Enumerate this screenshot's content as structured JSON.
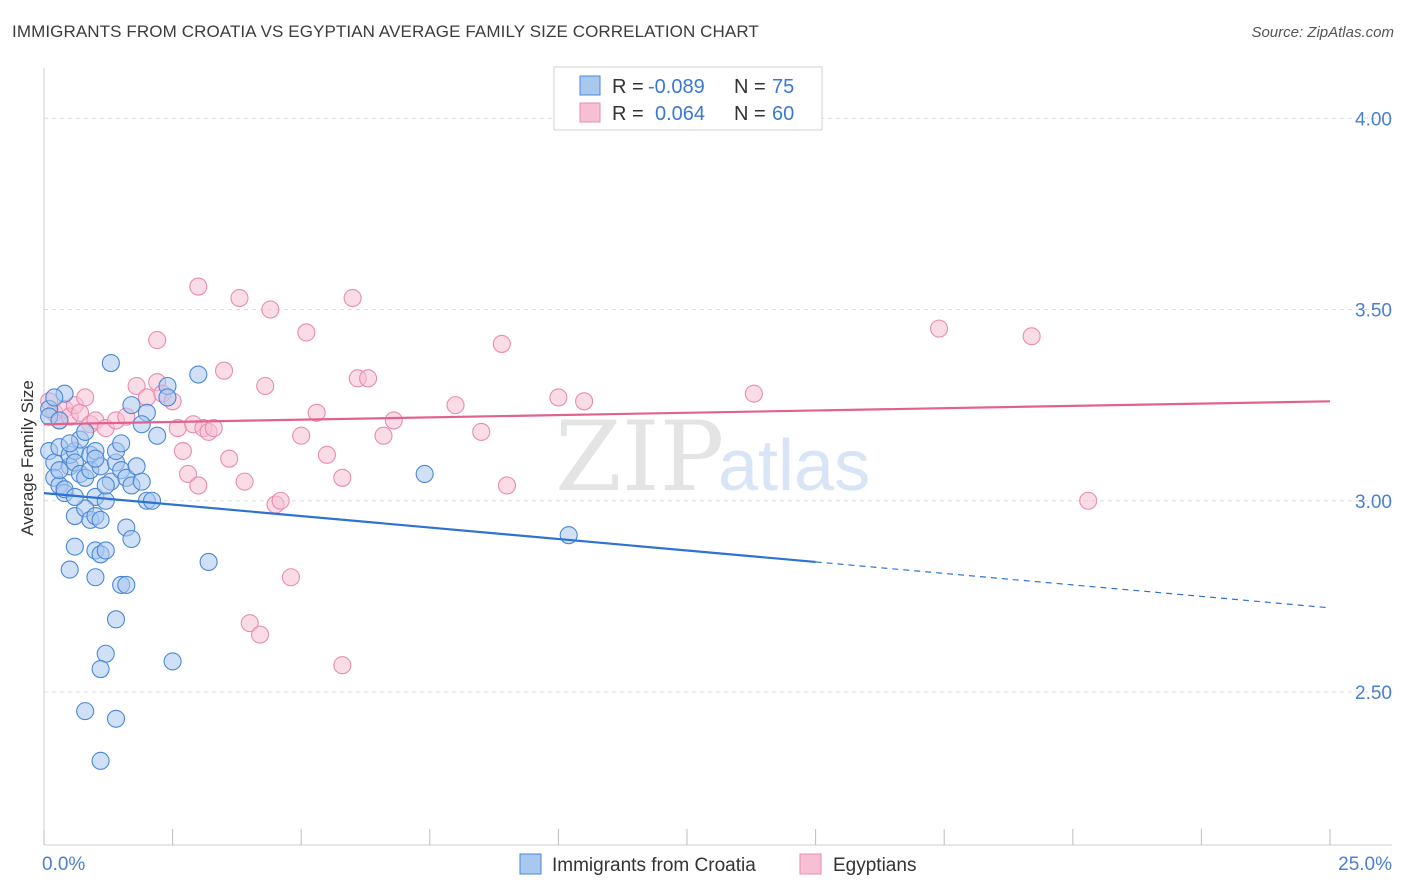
{
  "header": {
    "title": "IMMIGRANTS FROM CROATIA VS EGYPTIAN AVERAGE FAMILY SIZE CORRELATION CHART",
    "source": "Source: ZipAtlas.com"
  },
  "watermark": {
    "zip": "ZIP",
    "atlas": "atlas"
  },
  "colors": {
    "blue_fill": "#a9c8f0",
    "blue_stroke": "#4a87d6",
    "blue_line": "#2f72d2",
    "pink_fill": "#f6bfd3",
    "pink_stroke": "#e98bb0",
    "pink_line": "#e2628f",
    "grid": "#dcdcdc",
    "tick_label": "#4a7fd4"
  },
  "legend": {
    "rows": [
      {
        "r_label": "R = ",
        "r_value": "-0.089",
        "n_label": "N = ",
        "n_value": "75"
      },
      {
        "r_label": "R = ",
        "r_value": "0.064",
        "n_label": "N = ",
        "n_value": "60"
      }
    ]
  },
  "bottom_legend": [
    "Immigrants from Croatia",
    "Egyptians"
  ],
  "chart_data": {
    "type": "scatter",
    "title": "IMMIGRANTS FROM CROATIA VS EGYPTIAN AVERAGE FAMILY SIZE CORRELATION CHART",
    "xlabel": "",
    "ylabel": "Average Family Size",
    "xlim": [
      0,
      25
    ],
    "ylim": [
      2.1,
      4.1
    ],
    "x_tick_labels": [
      "0.0%",
      "25.0%"
    ],
    "y_ticks": [
      2.5,
      3.0,
      3.5,
      4.0
    ],
    "y_tick_labels": [
      "2.50",
      "3.00",
      "3.50",
      "4.00"
    ],
    "grid": true,
    "legend_position": "top-center",
    "series": [
      {
        "name": "Immigrants from Croatia",
        "color": "#a9c8f0",
        "trend": {
          "x": [
            0,
            15
          ],
          "y": [
            3.02,
            2.84
          ],
          "dashed_to": [
            25,
            2.72
          ]
        },
        "points": [
          [
            0.1,
            3.24
          ],
          [
            0.1,
            3.22
          ],
          [
            0.1,
            3.13
          ],
          [
            0.2,
            3.1
          ],
          [
            0.2,
            3.06
          ],
          [
            0.3,
            3.04
          ],
          [
            0.3,
            3.14
          ],
          [
            0.4,
            3.02
          ],
          [
            0.4,
            3.03
          ],
          [
            0.5,
            3.09
          ],
          [
            0.5,
            3.12
          ],
          [
            0.6,
            3.13
          ],
          [
            0.6,
            3.1
          ],
          [
            0.7,
            3.16
          ],
          [
            0.7,
            3.07
          ],
          [
            0.8,
            3.06
          ],
          [
            0.9,
            3.12
          ],
          [
            0.9,
            3.08
          ],
          [
            1.0,
            3.13
          ],
          [
            1.0,
            3.01
          ],
          [
            1.1,
            3.09
          ],
          [
            1.2,
            3.0
          ],
          [
            1.3,
            3.05
          ],
          [
            1.4,
            3.1
          ],
          [
            1.5,
            3.08
          ],
          [
            1.6,
            3.06
          ],
          [
            1.7,
            3.04
          ],
          [
            1.8,
            3.09
          ],
          [
            1.9,
            3.05
          ],
          [
            2.0,
            3.0
          ],
          [
            2.1,
            3.0
          ],
          [
            0.6,
            2.96
          ],
          [
            0.8,
            2.98
          ],
          [
            0.9,
            2.95
          ],
          [
            1.0,
            2.96
          ],
          [
            1.1,
            2.95
          ],
          [
            1.6,
            2.93
          ],
          [
            1.7,
            2.9
          ],
          [
            1.0,
            2.87
          ],
          [
            1.1,
            2.86
          ],
          [
            1.2,
            2.87
          ],
          [
            0.6,
            2.88
          ],
          [
            0.5,
            2.82
          ],
          [
            1.0,
            2.8
          ],
          [
            1.5,
            2.78
          ],
          [
            1.6,
            2.78
          ],
          [
            1.4,
            2.69
          ],
          [
            1.2,
            2.6
          ],
          [
            1.1,
            2.56
          ],
          [
            2.5,
            2.58
          ],
          [
            0.8,
            2.45
          ],
          [
            1.4,
            2.43
          ],
          [
            1.1,
            2.32
          ],
          [
            1.3,
            3.36
          ],
          [
            2.4,
            3.3
          ],
          [
            2.4,
            3.27
          ],
          [
            3.0,
            3.33
          ],
          [
            1.7,
            3.25
          ],
          [
            2.0,
            3.23
          ],
          [
            0.4,
            3.28
          ],
          [
            1.4,
            3.13
          ],
          [
            3.2,
            2.84
          ],
          [
            7.4,
            3.07
          ],
          [
            10.2,
            2.91
          ],
          [
            0.2,
            3.27
          ],
          [
            0.3,
            3.21
          ],
          [
            0.8,
            3.18
          ],
          [
            1.9,
            3.2
          ],
          [
            1.5,
            3.15
          ],
          [
            2.2,
            3.17
          ],
          [
            1.0,
            3.11
          ],
          [
            0.6,
            3.01
          ],
          [
            1.2,
            3.04
          ],
          [
            0.3,
            3.08
          ],
          [
            0.5,
            3.15
          ]
        ]
      },
      {
        "name": "Egyptians",
        "color": "#f6bfd3",
        "trend": {
          "x": [
            0,
            25
          ],
          "y": [
            3.2,
            3.26
          ]
        },
        "points": [
          [
            0.1,
            3.26
          ],
          [
            0.2,
            3.23
          ],
          [
            0.3,
            3.21
          ],
          [
            0.4,
            3.24
          ],
          [
            0.5,
            3.22
          ],
          [
            0.6,
            3.25
          ],
          [
            0.7,
            3.23
          ],
          [
            0.8,
            3.27
          ],
          [
            0.9,
            3.2
          ],
          [
            1.0,
            3.21
          ],
          [
            1.2,
            3.19
          ],
          [
            1.4,
            3.21
          ],
          [
            1.6,
            3.22
          ],
          [
            1.8,
            3.3
          ],
          [
            2.0,
            3.27
          ],
          [
            2.2,
            3.31
          ],
          [
            2.3,
            3.28
          ],
          [
            2.5,
            3.26
          ],
          [
            2.6,
            3.19
          ],
          [
            2.7,
            3.13
          ],
          [
            2.8,
            3.07
          ],
          [
            2.9,
            3.2
          ],
          [
            3.0,
            3.04
          ],
          [
            3.1,
            3.19
          ],
          [
            3.2,
            3.18
          ],
          [
            3.3,
            3.19
          ],
          [
            3.5,
            3.34
          ],
          [
            3.6,
            3.11
          ],
          [
            3.8,
            3.53
          ],
          [
            3.9,
            3.05
          ],
          [
            4.0,
            2.68
          ],
          [
            4.2,
            2.65
          ],
          [
            4.3,
            3.3
          ],
          [
            4.4,
            3.5
          ],
          [
            4.5,
            2.99
          ],
          [
            4.6,
            3.0
          ],
          [
            4.8,
            2.8
          ],
          [
            5.0,
            3.17
          ],
          [
            5.1,
            3.44
          ],
          [
            5.3,
            3.23
          ],
          [
            5.5,
            3.12
          ],
          [
            5.8,
            3.06
          ],
          [
            5.8,
            2.57
          ],
          [
            6.0,
            3.53
          ],
          [
            6.1,
            3.32
          ],
          [
            6.3,
            3.32
          ],
          [
            6.6,
            3.17
          ],
          [
            6.8,
            3.21
          ],
          [
            8.0,
            3.25
          ],
          [
            8.5,
            3.18
          ],
          [
            8.9,
            3.41
          ],
          [
            9.0,
            3.04
          ],
          [
            10.0,
            3.27
          ],
          [
            10.5,
            3.26
          ],
          [
            13.8,
            3.28
          ],
          [
            17.4,
            3.45
          ],
          [
            19.2,
            3.43
          ],
          [
            20.3,
            3.0
          ],
          [
            3.0,
            3.56
          ],
          [
            2.2,
            3.42
          ]
        ]
      }
    ]
  }
}
